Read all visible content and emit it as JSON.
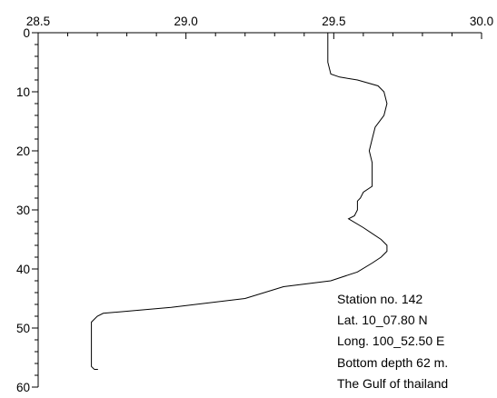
{
  "chart_data": {
    "type": "line",
    "title": "",
    "xlabel": "",
    "ylabel": "",
    "x_axis_position": "top",
    "y_axis_inverted": true,
    "xlim": [
      28.5,
      30.0
    ],
    "ylim": [
      0,
      60
    ],
    "x_ticks": [
      "28.5",
      "29.0",
      "29.5",
      "30.0"
    ],
    "y_ticks": [
      "0",
      "10",
      "20",
      "30",
      "40",
      "50",
      "60"
    ],
    "grid": false,
    "series": [
      {
        "x": [
          29.48,
          29.48,
          29.48,
          29.49,
          29.52,
          29.58,
          29.65,
          29.67,
          29.68,
          29.67,
          29.64,
          29.63,
          29.62,
          29.63,
          29.63,
          29.63,
          29.6,
          29.59,
          29.58,
          29.58,
          29.57,
          29.55,
          29.6,
          29.66,
          29.68,
          29.68,
          29.66,
          29.63,
          29.58,
          29.49,
          29.33,
          29.2,
          28.95,
          28.72,
          28.7,
          28.68,
          28.68,
          28.68,
          28.68,
          28.69
        ],
        "y": [
          0,
          3,
          5,
          7,
          7.5,
          8,
          9,
          10,
          12,
          14,
          16,
          18,
          20,
          22,
          24,
          26,
          27,
          28,
          28.5,
          30,
          31,
          31.5,
          33,
          35,
          36,
          37,
          38,
          39,
          40.5,
          42,
          43,
          45,
          46.5,
          47.5,
          48,
          49,
          50,
          52,
          56.5,
          57
        ]
      }
    ]
  },
  "annotations": [
    "Station no. 142",
    "Lat. 10_07.80 N",
    "Long. 100_52.50 E",
    "Bottom depth 62 m.",
    "The Gulf of thailand"
  ]
}
